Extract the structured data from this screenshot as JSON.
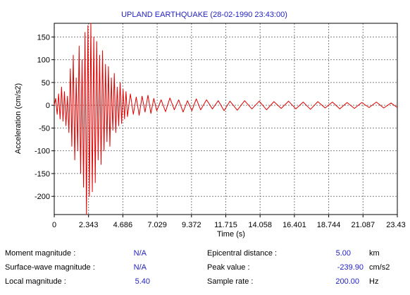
{
  "chart_data": {
    "type": "line",
    "title": "UPLAND EARTHQUAKE (28-02-1990 23:43:00)",
    "xlabel": "Time (s)",
    "ylabel": "Acceleration (cm/s2)",
    "xlim": [
      0,
      23.43
    ],
    "ylim": [
      -240,
      180
    ],
    "x_ticks": [
      "0",
      "2.343",
      "4.686",
      "7.029",
      "9.372",
      "11.715",
      "14.058",
      "16.401",
      "18.744",
      "21.087",
      "23.43"
    ],
    "y_ticks": [
      "150",
      "100",
      "50",
      "0",
      "-50",
      "-100",
      "-150",
      "-200"
    ],
    "y_tick_values": [
      150,
      100,
      50,
      0,
      -50,
      -100,
      -150,
      -200
    ],
    "grid": true,
    "series": [
      {
        "color": "#e00000",
        "x": [
          0,
          0.1,
          0.2,
          0.3,
          0.4,
          0.5,
          0.6,
          0.7,
          0.8,
          0.9,
          1.0,
          1.1,
          1.2,
          1.3,
          1.4,
          1.5,
          1.6,
          1.7,
          1.8,
          1.9,
          2.0,
          2.1,
          2.2,
          2.3,
          2.4,
          2.5,
          2.6,
          2.7,
          2.8,
          2.9,
          3.0,
          3.1,
          3.2,
          3.3,
          3.4,
          3.5,
          3.6,
          3.7,
          3.8,
          3.9,
          4.0,
          4.1,
          4.2,
          4.3,
          4.4,
          4.5,
          4.6,
          4.7,
          4.8,
          4.9,
          5.0,
          5.2,
          5.4,
          5.6,
          5.8,
          6.0,
          6.2,
          6.4,
          6.6,
          6.8,
          7.0,
          7.3,
          7.6,
          7.9,
          8.2,
          8.5,
          8.8,
          9.1,
          9.4,
          9.7,
          10.0,
          10.4,
          10.8,
          11.2,
          11.6,
          12.0,
          12.5,
          13.0,
          13.5,
          14.0,
          14.5,
          15.0,
          15.5,
          16.0,
          16.5,
          17.0,
          17.5,
          18.0,
          18.5,
          19.0,
          19.5,
          20.0,
          20.5,
          21.0,
          21.5,
          22.0,
          22.5,
          23.0,
          23.43
        ],
        "y": [
          0,
          15,
          -20,
          25,
          -30,
          40,
          -35,
          30,
          -45,
          20,
          -60,
          80,
          -90,
          110,
          -120,
          60,
          -100,
          130,
          -150,
          100,
          -180,
          160,
          -239.9,
          175,
          -200,
          180,
          -190,
          150,
          -170,
          140,
          -120,
          110,
          -130,
          120,
          -100,
          90,
          -80,
          85,
          -90,
          60,
          -55,
          70,
          -60,
          40,
          -45,
          50,
          -40,
          35,
          -30,
          30,
          -25,
          25,
          -20,
          18,
          -22,
          20,
          -15,
          22,
          -18,
          15,
          -12,
          12,
          -14,
          16,
          -10,
          12,
          -15,
          10,
          -12,
          14,
          -10,
          12,
          -8,
          10,
          -12,
          9,
          -11,
          10,
          -8,
          9,
          -10,
          8,
          -7,
          9,
          -8,
          7,
          -9,
          8,
          -6,
          7,
          -8,
          6,
          -7,
          6,
          -5,
          7,
          -6,
          5,
          -5
        ]
      }
    ]
  },
  "info": {
    "moment_magnitude_label": "Moment magnitude :",
    "moment_magnitude_value": "N/A",
    "surface_wave_label": "Surface-wave magnitude :",
    "surface_wave_value": "N/A",
    "local_magnitude_label": "Local magnitude :",
    "local_magnitude_value": "5.40",
    "epicentral_label": "Epicentral distance :",
    "epicentral_value": "5.00",
    "epicentral_unit": "km",
    "peak_label": "Peak value :",
    "peak_value": "-239.90",
    "peak_unit": "cm/s2",
    "sample_rate_label": "Sample rate :",
    "sample_rate_value": "200.00",
    "sample_rate_unit": "Hz"
  },
  "colors": {
    "signal": "#e00000",
    "title": "#1f1fbf",
    "value": "#1f1fbf",
    "grid": "#808080"
  }
}
